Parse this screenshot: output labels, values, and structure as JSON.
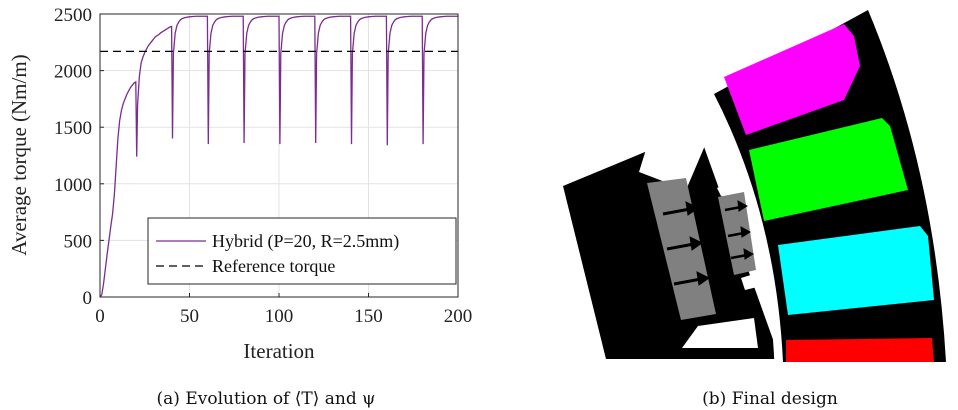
{
  "chart_data": {
    "type": "line",
    "xlabel": "Iteration",
    "ylabel": "Average torque (Nm/m)",
    "xlim": [
      0,
      200
    ],
    "ylim": [
      0,
      2500
    ],
    "xticks": [
      0,
      50,
      100,
      150,
      200
    ],
    "yticks": [
      0,
      500,
      1000,
      1500,
      2000,
      2500
    ],
    "grid": true,
    "legend_position": "bottom-right",
    "series": [
      {
        "name": "Hybrid (P=20, R=2.5mm)",
        "color": "#7b2c8f",
        "line_style": "solid",
        "x": [
          0,
          1,
          2,
          3,
          4,
          5,
          6,
          7,
          8,
          9,
          10,
          11,
          12,
          13,
          14,
          15,
          16,
          17,
          18,
          19,
          20,
          20.5,
          21,
          22,
          23,
          24,
          25,
          26,
          27,
          28,
          29,
          30,
          31,
          32,
          33,
          34,
          35,
          36,
          37,
          38,
          39,
          40,
          40.5,
          41,
          42,
          43,
          44,
          45,
          46,
          48,
          50,
          52,
          54,
          56,
          58,
          60,
          60.5,
          61,
          62,
          63,
          64,
          65,
          66,
          68,
          70,
          72,
          74,
          76,
          78,
          80,
          80.5,
          81,
          82,
          83,
          84,
          85,
          86,
          88,
          90,
          92,
          94,
          96,
          98,
          100,
          100.5,
          101,
          102,
          103,
          104,
          105,
          106,
          108,
          110,
          112,
          114,
          116,
          118,
          120,
          120.5,
          121,
          122,
          123,
          124,
          125,
          126,
          128,
          130,
          132,
          134,
          136,
          138,
          140,
          140.5,
          141,
          142,
          143,
          144,
          145,
          146,
          148,
          150,
          152,
          154,
          156,
          158,
          160,
          160.5,
          161,
          162,
          163,
          164,
          165,
          166,
          168,
          170,
          172,
          174,
          176,
          178,
          180,
          180.5,
          181,
          182,
          183,
          184,
          185,
          186,
          188,
          190,
          192,
          194,
          196,
          198,
          200
        ],
        "y": [
          0,
          20,
          120,
          250,
          380,
          500,
          620,
          730,
          900,
          1150,
          1400,
          1560,
          1650,
          1710,
          1750,
          1790,
          1820,
          1850,
          1870,
          1890,
          1900,
          1240,
          1700,
          1950,
          2070,
          2120,
          2160,
          2190,
          2220,
          2240,
          2260,
          2280,
          2300,
          2310,
          2320,
          2335,
          2345,
          2355,
          2365,
          2375,
          2385,
          2390,
          1400,
          2150,
          2330,
          2400,
          2430,
          2450,
          2460,
          2470,
          2475,
          2478,
          2480,
          2480,
          2480,
          2480,
          1350,
          2150,
          2330,
          2400,
          2430,
          2450,
          2460,
          2470,
          2475,
          2478,
          2480,
          2480,
          2480,
          2480,
          1360,
          2150,
          2330,
          2400,
          2430,
          2450,
          2460,
          2470,
          2475,
          2478,
          2480,
          2480,
          2480,
          2480,
          1350,
          2150,
          2330,
          2400,
          2430,
          2450,
          2460,
          2470,
          2475,
          2478,
          2480,
          2480,
          2480,
          2480,
          1360,
          2150,
          2330,
          2400,
          2430,
          2450,
          2460,
          2470,
          2475,
          2478,
          2480,
          2480,
          2480,
          2480,
          1350,
          2150,
          2330,
          2400,
          2430,
          2450,
          2460,
          2470,
          2475,
          2478,
          2480,
          2480,
          2480,
          2480,
          1340,
          2150,
          2330,
          2400,
          2430,
          2450,
          2460,
          2470,
          2475,
          2478,
          2480,
          2480,
          2480,
          2480,
          1350,
          2150,
          2330,
          2400,
          2430,
          2450,
          2460,
          2470,
          2475,
          2478,
          2480,
          2480,
          2480,
          2480
        ]
      },
      {
        "name": "Reference torque",
        "color": "#000000",
        "line_style": "dashed",
        "x": [
          0,
          200
        ],
        "y": [
          2170,
          2170
        ]
      }
    ]
  },
  "captions": {
    "left": "(a) Evolution of ⟨T⟩ and ψ",
    "right": "(b) Final design"
  },
  "design_colors": {
    "background": "#000000",
    "slot_1": "#ff00ff",
    "slot_2": "#00ff00",
    "slot_3": "#00ffff",
    "slot_4": "#ff0000",
    "magnet": "#808080",
    "air": "#ffffff"
  },
  "icons": {
    "magnetization": "arrow-icon"
  }
}
